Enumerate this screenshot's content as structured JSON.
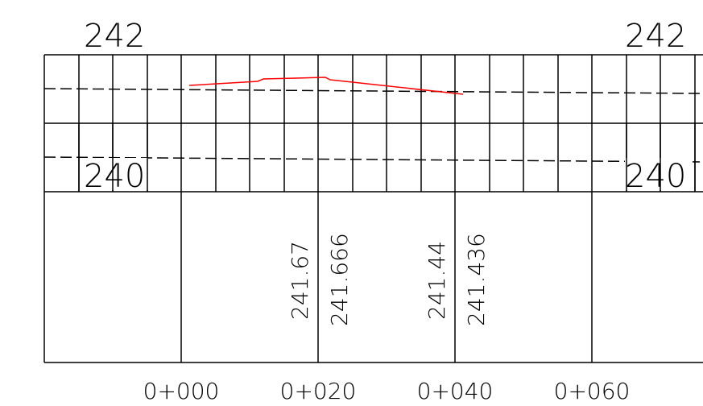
{
  "profile": {
    "elevation_labels": {
      "top_left": "242",
      "top_right": "242",
      "mid_left": "240",
      "mid_right": "240"
    },
    "stations": [
      "0+000",
      "0+020",
      "0+040",
      "0+060"
    ],
    "values": [
      "241.67",
      "241.666",
      "241.44",
      "241.436"
    ],
    "colors": {
      "grid": "#000000",
      "profile_line": "#ff0000",
      "background": "#ffffff"
    }
  }
}
